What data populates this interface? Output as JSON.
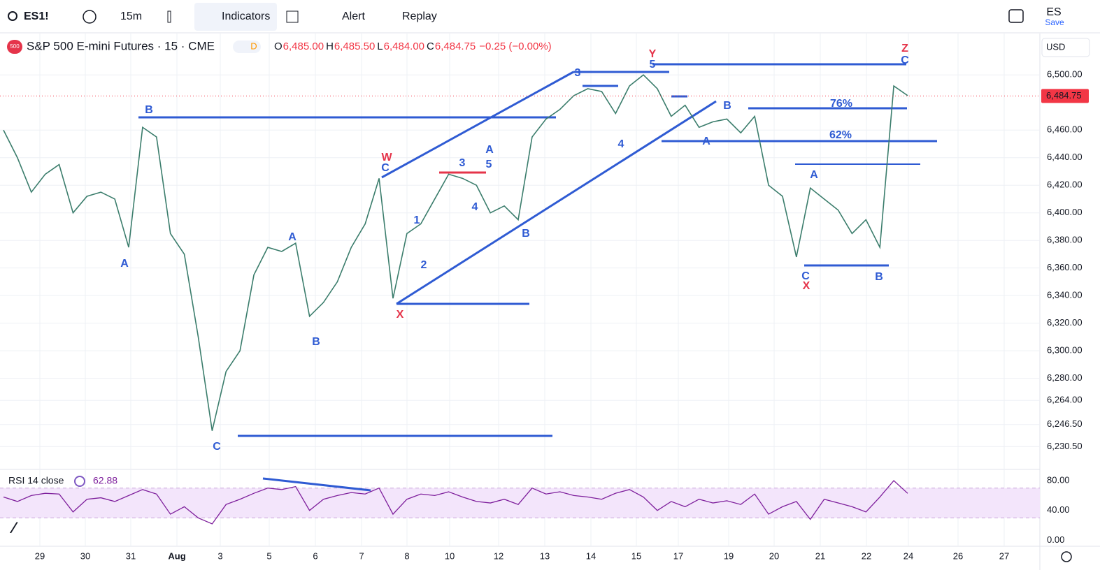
{
  "toolbar": {
    "symbol": "ES1!",
    "interval": "15m",
    "indicators": "Indicators",
    "alert": "Alert",
    "replay": "Replay",
    "account": "ES",
    "save": "Save"
  },
  "chart_data": {
    "type": "line",
    "title": "S&P 500 E-mini Futures · 15 · CME",
    "badge": "500",
    "status": "D",
    "ohlc": [
      {
        "label": "O",
        "value": "6,485.00"
      },
      {
        "label": "H",
        "value": "6,485.50"
      },
      {
        "label": "L",
        "value": "6,484.00"
      },
      {
        "label": "C",
        "value": "6,484.75"
      }
    ],
    "change": "−0.25 (−0.00%)",
    "currency": "USD",
    "x_labels": [
      "29",
      "30",
      "31",
      "Aug",
      "3",
      "5",
      "6",
      "7",
      "8",
      "10",
      "12",
      "13",
      "14",
      "15",
      "17",
      "19",
      "20",
      "21",
      "22",
      "24",
      "26",
      "27"
    ],
    "values": [
      6460,
      6440,
      6415,
      6428,
      6435,
      6400,
      6412,
      6415,
      6410,
      6375,
      6462,
      6455,
      6385,
      6370,
      6310,
      6242,
      6285,
      6300,
      6355,
      6375,
      6372,
      6378,
      6325,
      6335,
      6350,
      6375,
      6392,
      6425,
      6338,
      6385,
      6392,
      6410,
      6428,
      6425,
      6420,
      6400,
      6405,
      6395,
      6455,
      6468,
      6475,
      6485,
      6490,
      6488,
      6472,
      6492,
      6500,
      6490,
      6470,
      6478,
      6462,
      6466,
      6468,
      6458,
      6470,
      6420,
      6412,
      6368,
      6418,
      6410,
      6402,
      6385,
      6395,
      6375,
      6492,
      6485
    ],
    "color": "#3b7d6c",
    "ylim": [
      6215,
      6530
    ],
    "yticks": [
      {
        "value": 6500,
        "label": "6,500.00"
      },
      {
        "value": 6460,
        "label": "6,460.00"
      },
      {
        "value": 6440,
        "label": "6,440.00"
      },
      {
        "value": 6420,
        "label": "6,420.00"
      },
      {
        "value": 6400,
        "label": "6,400.00"
      },
      {
        "value": 6380,
        "label": "6,380.00"
      },
      {
        "value": 6360,
        "label": "6,360.00"
      },
      {
        "value": 6340,
        "label": "6,340.00"
      },
      {
        "value": 6320,
        "label": "6,320.00"
      },
      {
        "value": 6300,
        "label": "6,300.00"
      },
      {
        "value": 6280,
        "label": "6,280.00"
      },
      {
        "value": 6264,
        "label": "6,264.00"
      },
      {
        "value": 6246.5,
        "label": "6,246.50"
      },
      {
        "value": 6230.5,
        "label": "6,230.50"
      }
    ],
    "grid": true,
    "last_price": {
      "value": 6484.75,
      "label": "6,484.75"
    },
    "last_color": "#f23645",
    "annotations": [
      {
        "text": "B",
        "color": "#2f5bd3"
      },
      {
        "text": "A",
        "color": "#2f5bd3"
      },
      {
        "text": "C",
        "color": "#2f5bd3"
      },
      {
        "text": "A",
        "color": "#2f5bd3"
      },
      {
        "text": "B",
        "color": "#2f5bd3"
      },
      {
        "text": "W",
        "color": "#e5344a"
      },
      {
        "text": "C",
        "color": "#2f5bd3"
      },
      {
        "text": "X",
        "color": "#e5344a"
      },
      {
        "text": "1",
        "color": "#2f5bd3"
      },
      {
        "text": "2",
        "color": "#2f5bd3"
      },
      {
        "text": "3",
        "color": "#2f5bd3"
      },
      {
        "text": "4",
        "color": "#2f5bd3"
      },
      {
        "text": "A",
        "color": "#2f5bd3"
      },
      {
        "text": "5",
        "color": "#2f5bd3"
      },
      {
        "text": "B",
        "color": "#2f5bd3"
      },
      {
        "text": "3",
        "color": "#2f5bd3"
      },
      {
        "text": "4",
        "color": "#2f5bd3"
      },
      {
        "text": "Y",
        "color": "#e5344a"
      },
      {
        "text": "5",
        "color": "#2f5bd3"
      },
      {
        "text": "A",
        "color": "#2f5bd3"
      },
      {
        "text": "B",
        "color": "#2f5bd3"
      },
      {
        "text": "76%",
        "color": "#2f5bd3"
      },
      {
        "text": "62%",
        "color": "#2f5bd3"
      },
      {
        "text": "A",
        "color": "#2f5bd3"
      },
      {
        "text": "C",
        "color": "#2f5bd3"
      },
      {
        "text": "X",
        "color": "#e5344a"
      },
      {
        "text": "B",
        "color": "#2f5bd3"
      },
      {
        "text": "Z",
        "color": "#e5344a"
      },
      {
        "text": "C",
        "color": "#2f5bd3"
      }
    ],
    "rsi": {
      "title": "RSI 14 close",
      "last": "62.88",
      "color": "#7e1f9c",
      "band": [
        30,
        70
      ],
      "ylim": [
        -8,
        95
      ],
      "yticks": [
        {
          "value": 80,
          "label": "80.00"
        },
        {
          "value": 40,
          "label": "40.00"
        },
        {
          "value": 0,
          "label": "0.00"
        }
      ],
      "values": [
        58,
        52,
        60,
        63,
        62,
        38,
        55,
        57,
        52,
        60,
        68,
        62,
        35,
        45,
        30,
        22,
        48,
        55,
        63,
        70,
        68,
        72,
        40,
        55,
        60,
        64,
        62,
        70,
        35,
        55,
        62,
        60,
        65,
        58,
        52,
        50,
        55,
        48,
        70,
        62,
        65,
        60,
        58,
        55,
        63,
        68,
        58,
        40,
        52,
        45,
        55,
        50,
        53,
        48,
        62,
        35,
        45,
        52,
        28,
        55,
        50,
        45,
        38,
        58,
        80,
        62.88
      ]
    }
  }
}
